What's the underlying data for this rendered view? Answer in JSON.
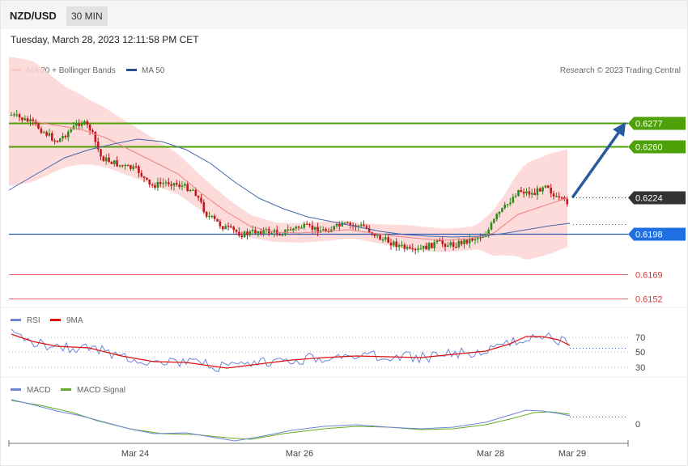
{
  "header": {
    "symbol": "NZD/USD",
    "timeframe": "30 MIN",
    "timestamp": "Tuesday, March 28, 2023 12:11:58 PM CET"
  },
  "legend": {
    "ma20": "MA 20 + Bollinger Bands",
    "ma50": "MA 50",
    "copyright": "Research © 2023 Trading Central",
    "rsi": "RSI",
    "rsi_ma": "9MA",
    "macd": "MACD",
    "macd_signal": "MACD Signal"
  },
  "colors": {
    "up": "#2e8b1a",
    "down": "#c4161c",
    "bollinger": "#fdd5d5",
    "ma20": "#f08080",
    "ma50": "#4466aa",
    "resistance": "#4fa10a",
    "support_line": "#2a5db0",
    "red_level": "#e03030",
    "arrow": "#2a5aa0",
    "rsi": "#6b86d6",
    "rsi_ma": "#e01010",
    "macd": "#6b86d6",
    "macd_signal": "#66aa22"
  },
  "chart_data": [
    {
      "type": "candlestick",
      "title": "NZD/USD",
      "x_ticks": [
        "Mar 24",
        "Mar 26",
        "Mar 28",
        "Mar 29"
      ],
      "ylim": [
        0.6145,
        0.6287
      ],
      "current_price": 0.6224,
      "levels": [
        {
          "label": "0.6277",
          "value": 0.6277,
          "kind": "resistance"
        },
        {
          "label": "0.6260",
          "value": 0.626,
          "kind": "resistance"
        },
        {
          "label": "0.6224",
          "value": 0.6224,
          "kind": "current"
        },
        {
          "label": "0.6198",
          "value": 0.6198,
          "kind": "pivot"
        },
        {
          "label": "0.6169",
          "value": 0.6169,
          "kind": "support"
        },
        {
          "label": "0.6152",
          "value": 0.6152,
          "kind": "support"
        }
      ],
      "target_arrow": {
        "from": 0.6224,
        "to": 0.6277
      }
    },
    {
      "type": "line",
      "title": "RSI",
      "series": [
        {
          "name": "RSI"
        },
        {
          "name": "9MA"
        }
      ],
      "y_ticks": [
        "70",
        "50",
        "30"
      ],
      "ylim": [
        25,
        75
      ]
    },
    {
      "type": "line",
      "title": "MACD",
      "series": [
        {
          "name": "MACD"
        },
        {
          "name": "MACD Signal"
        }
      ],
      "y_ticks": [
        "0"
      ]
    }
  ]
}
